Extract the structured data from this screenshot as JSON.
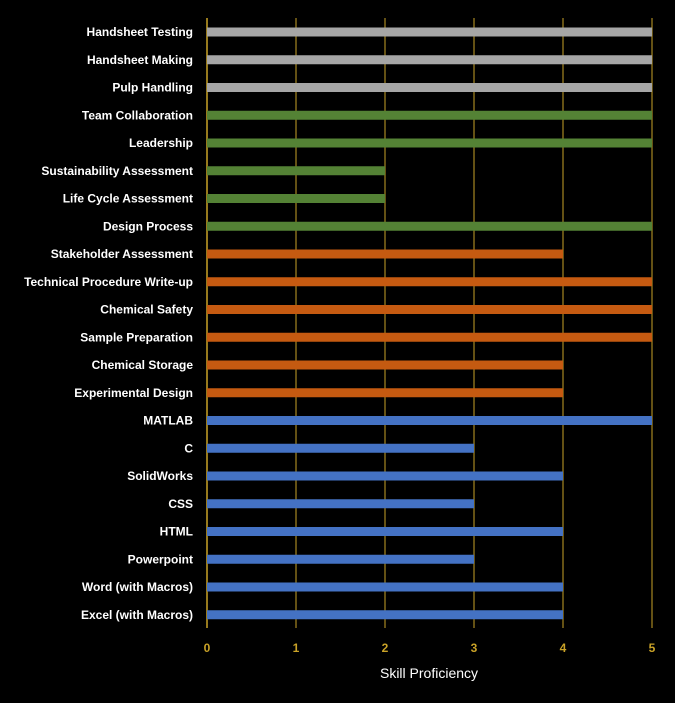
{
  "chart_data": {
    "type": "bar",
    "orientation": "horizontal",
    "categories": [
      "Handsheet Testing",
      "Handsheet Making",
      "Pulp Handling",
      "Team Collaboration",
      "Leadership",
      "Sustainability Assessment",
      "Life Cycle Assessment",
      "Design Process",
      "Stakeholder Assessment",
      "Technical Procedure Write-up",
      "Chemical Safety",
      "Sample Preparation",
      "Chemical Storage",
      "Experimental Design",
      "MATLAB",
      "C",
      "SolidWorks",
      "CSS",
      "HTML",
      "Powerpoint",
      "Word (with Macros)",
      "Excel (with Macros)"
    ],
    "values": [
      5,
      5,
      5,
      5,
      5,
      2,
      2,
      5,
      4,
      5,
      5,
      5,
      4,
      4,
      5,
      3,
      4,
      3,
      4,
      3,
      4,
      4
    ],
    "bar_colors": [
      "#a6a6a6",
      "#a6a6a6",
      "#a6a6a6",
      "#548235",
      "#548235",
      "#548235",
      "#548235",
      "#548235",
      "#c55a11",
      "#c55a11",
      "#c55a11",
      "#c55a11",
      "#c55a11",
      "#c55a11",
      "#4472c4",
      "#4472c4",
      "#4472c4",
      "#4472c4",
      "#4472c4",
      "#4472c4",
      "#4472c4",
      "#4472c4"
    ],
    "xlabel": "Skill Proficiency",
    "xlim": [
      0,
      5
    ],
    "x_ticks": [
      "0",
      "1",
      "2",
      "3",
      "4",
      "5"
    ],
    "grid": true,
    "gridline_color": "#c9a227",
    "background": "#000000"
  }
}
